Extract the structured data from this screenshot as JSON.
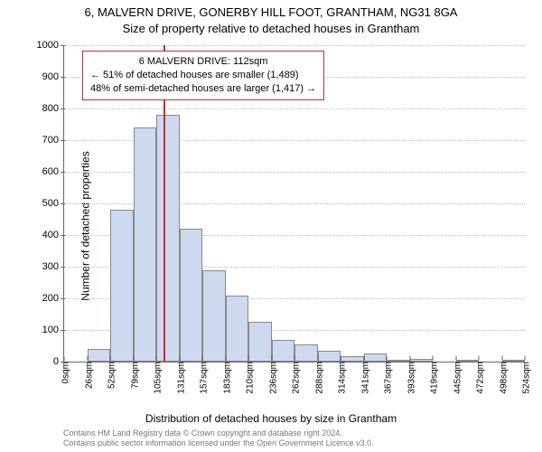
{
  "titles": {
    "main": "6, MALVERN DRIVE, GONERBY HILL FOOT, GRANTHAM, NG31 8GA",
    "sub": "Size of property relative to detached houses in Grantham"
  },
  "axes": {
    "ylabel": "Number of detached properties",
    "xlabel": "Distribution of detached houses by size in Grantham",
    "ylim": [
      0,
      1000
    ],
    "yticks": [
      0,
      100,
      200,
      300,
      400,
      500,
      600,
      700,
      800,
      900,
      1000
    ],
    "xticks": [
      "0sqm",
      "26sqm",
      "52sqm",
      "79sqm",
      "105sqm",
      "131sqm",
      "157sqm",
      "183sqm",
      "210sqm",
      "236sqm",
      "262sqm",
      "288sqm",
      "314sqm",
      "341sqm",
      "367sqm",
      "393sqm",
      "419sqm",
      "445sqm",
      "472sqm",
      "498sqm",
      "524sqm"
    ]
  },
  "chart": {
    "type": "histogram",
    "bar_color": "#cdd9ef",
    "bar_border": "#888888",
    "grid_color": "#bbbbbb",
    "axis_color": "#666666",
    "background_color": "#ffffff",
    "marker_color": "#c03030",
    "marker_x_index": 4.3,
    "n_bins": 20,
    "values": [
      0,
      40,
      480,
      740,
      780,
      420,
      290,
      210,
      125,
      70,
      55,
      35,
      18,
      25,
      5,
      8,
      0,
      3,
      0,
      3
    ]
  },
  "callout": {
    "line1": "6 MALVERN DRIVE: 112sqm",
    "line2": "← 51% of detached houses are smaller (1,489)",
    "line3": "48% of semi-detached houses are larger (1,417) →"
  },
  "footer": {
    "line1": "Contains HM Land Registry data © Crown copyright and database right 2024.",
    "line2": "Contains public sector information licensed under the Open Government Licence v3.0."
  },
  "fonts": {
    "title_size": 13,
    "label_size": 12,
    "tick_size": 11,
    "callout_size": 11,
    "footer_size": 9
  }
}
